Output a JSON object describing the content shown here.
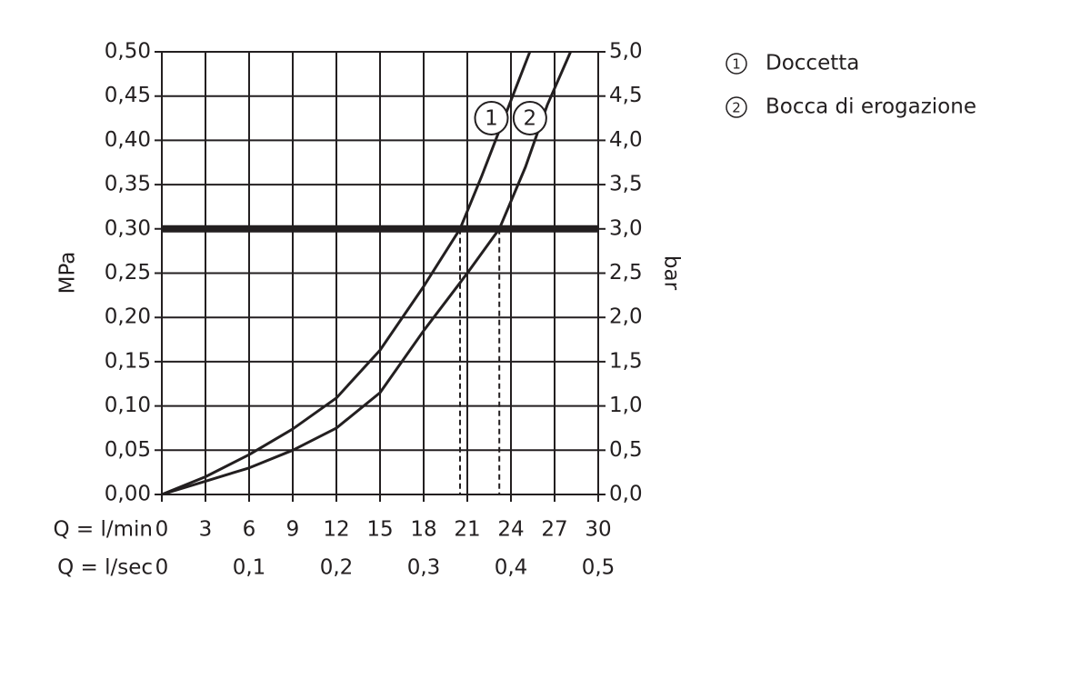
{
  "chart_data": {
    "type": "line",
    "ylabel": "MPa",
    "y2label": "bar",
    "xlabel": "Q = l/min",
    "x2label": "Q = l/sec",
    "xlim": [
      0,
      30
    ],
    "xticks": [
      0,
      3,
      6,
      9,
      12,
      15,
      18,
      21,
      24,
      27,
      30
    ],
    "x2lim": [
      0,
      0.5
    ],
    "x2ticks": [
      0,
      {
        "value": 0.1,
        "label": "0,1"
      },
      {
        "value": 0.2,
        "label": "0,2"
      },
      {
        "value": 0.3,
        "label": "0,3"
      },
      {
        "value": 0.4,
        "label": "0,4"
      },
      {
        "value": 0.5,
        "label": "0,5"
      }
    ],
    "ylim": [
      0,
      0.5
    ],
    "yticks": [
      {
        "value": 0,
        "label": "0,00"
      },
      {
        "value": 0.05,
        "label": "0,05"
      },
      {
        "value": 0.1,
        "label": "0,10"
      },
      {
        "value": 0.15,
        "label": "0,15"
      },
      {
        "value": 0.2,
        "label": "0,20"
      },
      {
        "value": 0.25,
        "label": "0,25"
      },
      {
        "value": 0.3,
        "label": "0,30"
      },
      {
        "value": 0.35,
        "label": "0,35"
      },
      {
        "value": 0.4,
        "label": "0,40"
      },
      {
        "value": 0.45,
        "label": "0,45"
      },
      {
        "value": 0.5,
        "label": "0,50"
      }
    ],
    "y2lim": [
      0,
      5
    ],
    "y2ticks": [
      {
        "value": 0,
        "label": "0,0"
      },
      {
        "value": 0.5,
        "label": "0,5"
      },
      {
        "value": 1,
        "label": "1,0"
      },
      {
        "value": 1.5,
        "label": "1,5"
      },
      {
        "value": 2,
        "label": "2,0"
      },
      {
        "value": 2.5,
        "label": "2,5"
      },
      {
        "value": 3,
        "label": "3,0"
      },
      {
        "value": 3.5,
        "label": "3,5"
      },
      {
        "value": 4,
        "label": "4,0"
      },
      {
        "value": 4.5,
        "label": "4,5"
      },
      {
        "value": 5,
        "label": "5,0"
      }
    ],
    "grid": true,
    "reference_y": 0.3,
    "markers_x": [
      20.5,
      23.2
    ],
    "series": [
      {
        "label": "1",
        "name": "Doccetta",
        "color": "#231f20",
        "x": [
          0,
          3,
          6,
          9,
          12,
          15,
          18,
          20.5,
          22,
          24,
          25.3
        ],
        "values": [
          0,
          0.02,
          0.045,
          0.074,
          0.109,
          0.163,
          0.235,
          0.3,
          0.36,
          0.445,
          0.5
        ]
      },
      {
        "label": "2",
        "name": "Bocca di erogazione",
        "color": "#231f20",
        "x": [
          0,
          3,
          6,
          9,
          12,
          15,
          18,
          21,
          23.2,
          25,
          26.5,
          28.1
        ],
        "values": [
          0,
          0.015,
          0.03,
          0.05,
          0.075,
          0.115,
          0.185,
          0.25,
          0.3,
          0.37,
          0.44,
          0.5
        ]
      }
    ]
  }
}
